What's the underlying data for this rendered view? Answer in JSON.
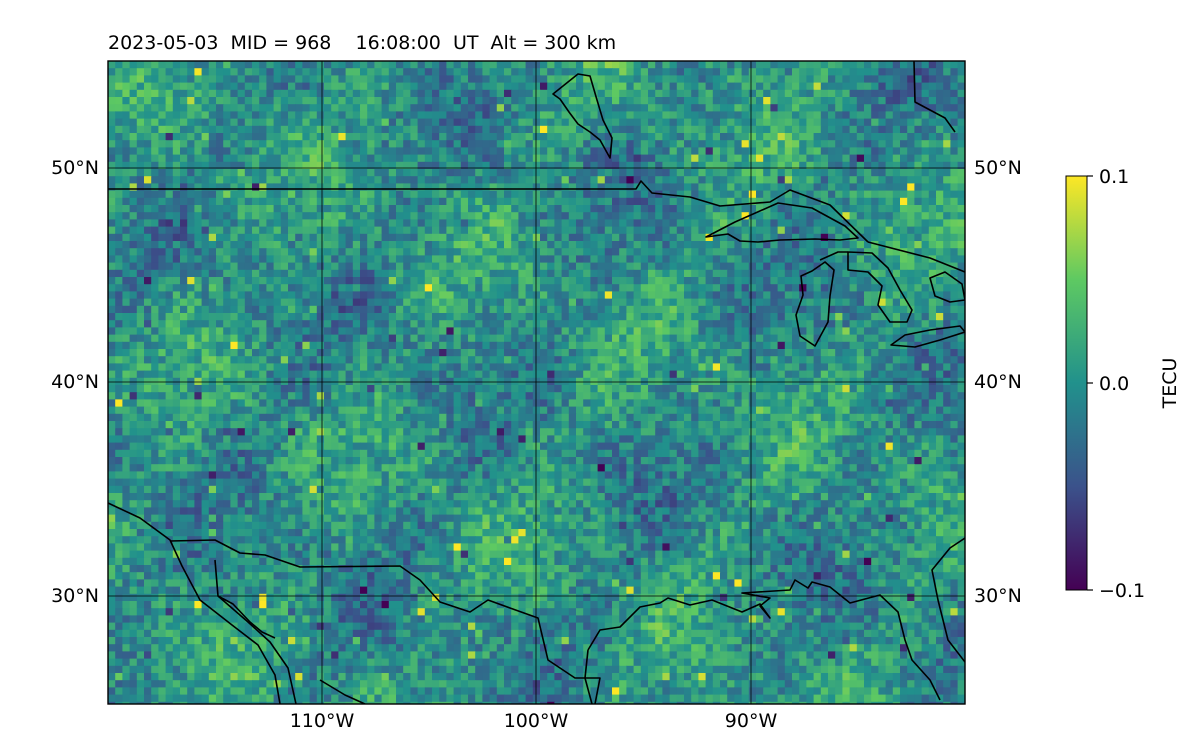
{
  "map": {
    "title": "2023-05-03  MID = 968    16:08:00  UT  Alt = 300 km",
    "lat_ticks": [
      "50°N",
      "40°N",
      "30°N"
    ],
    "lon_ticks": [
      "110°W",
      "100°W",
      "90°W"
    ],
    "extent": {
      "lon_min": -120,
      "lon_max": -80,
      "lat_min": 25,
      "lat_max": 55
    },
    "gridlines": true,
    "field": "TEC perturbation (dTEC)",
    "colorbar": {
      "label": "TECU",
      "ticks": [
        "0.1",
        "0.0",
        "−0.1"
      ],
      "tick_values": [
        0.1,
        0.0,
        -0.1
      ],
      "vmin": -0.1,
      "vmax": 0.1,
      "colormap": "viridis",
      "colors": [
        "#440154",
        "#3b528b",
        "#21918c",
        "#5ec962",
        "#fde725"
      ]
    },
    "features": [
      "coastline",
      "US-Canada border",
      "US-Mexico border",
      "Great Lakes"
    ]
  }
}
